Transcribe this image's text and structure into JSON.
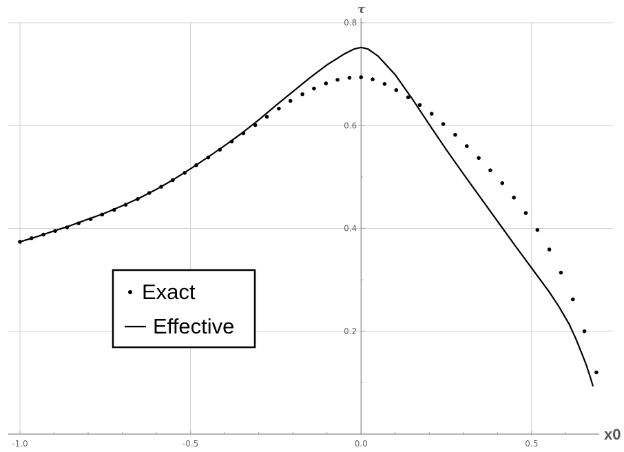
{
  "chart_data": {
    "type": "line",
    "title": "",
    "xlabel": "x0",
    "ylabel": "τ",
    "xlim": [
      -1.0,
      0.68
    ],
    "ylim": [
      0.0,
      0.8
    ],
    "grid": true,
    "legend_position": "bottom-left",
    "x_ticks": [
      {
        "value": -1.0,
        "label": "-1.0"
      },
      {
        "value": -0.5,
        "label": "-0.5"
      },
      {
        "value": 0.0,
        "label": "0.0"
      },
      {
        "value": 0.5,
        "label": "0.5"
      }
    ],
    "y_ticks": [
      {
        "value": 0.2,
        "label": "0.2"
      },
      {
        "value": 0.4,
        "label": "0.4"
      },
      {
        "value": 0.6,
        "label": "0.6"
      },
      {
        "value": 0.8,
        "label": "0.8"
      }
    ],
    "series": [
      {
        "name": "Exact",
        "style": "dots",
        "color": "#000000",
        "points": [
          [
            -1.0,
            0.374
          ],
          [
            -0.966,
            0.381
          ],
          [
            -0.931,
            0.388
          ],
          [
            -0.897,
            0.395
          ],
          [
            -0.862,
            0.402
          ],
          [
            -0.828,
            0.41
          ],
          [
            -0.793,
            0.418
          ],
          [
            -0.759,
            0.427
          ],
          [
            -0.724,
            0.436
          ],
          [
            -0.69,
            0.446
          ],
          [
            -0.655,
            0.457
          ],
          [
            -0.621,
            0.469
          ],
          [
            -0.586,
            0.481
          ],
          [
            -0.552,
            0.494
          ],
          [
            -0.517,
            0.508
          ],
          [
            -0.483,
            0.523
          ],
          [
            -0.448,
            0.538
          ],
          [
            -0.414,
            0.553
          ],
          [
            -0.379,
            0.569
          ],
          [
            -0.345,
            0.585
          ],
          [
            -0.31,
            0.601
          ],
          [
            -0.276,
            0.617
          ],
          [
            -0.241,
            0.633
          ],
          [
            -0.207,
            0.648
          ],
          [
            -0.172,
            0.661
          ],
          [
            -0.138,
            0.672
          ],
          [
            -0.103,
            0.682
          ],
          [
            -0.069,
            0.689
          ],
          [
            -0.034,
            0.693
          ],
          [
            0.0,
            0.694
          ],
          [
            0.034,
            0.69
          ],
          [
            0.069,
            0.681
          ],
          [
            0.103,
            0.669
          ],
          [
            0.138,
            0.655
          ],
          [
            0.172,
            0.64
          ],
          [
            0.207,
            0.623
          ],
          [
            0.241,
            0.603
          ],
          [
            0.276,
            0.582
          ],
          [
            0.31,
            0.56
          ],
          [
            0.345,
            0.537
          ],
          [
            0.379,
            0.513
          ],
          [
            0.414,
            0.488
          ],
          [
            0.448,
            0.46
          ],
          [
            0.483,
            0.43
          ],
          [
            0.517,
            0.397
          ],
          [
            0.552,
            0.359
          ],
          [
            0.586,
            0.314
          ],
          [
            0.621,
            0.262
          ],
          [
            0.655,
            0.2
          ],
          [
            0.69,
            0.12
          ]
        ]
      },
      {
        "name": "Effective",
        "style": "line",
        "color": "#000000",
        "points": [
          [
            -1.0,
            0.374
          ],
          [
            -0.95,
            0.384
          ],
          [
            -0.9,
            0.395
          ],
          [
            -0.85,
            0.406
          ],
          [
            -0.8,
            0.418
          ],
          [
            -0.75,
            0.43
          ],
          [
            -0.7,
            0.444
          ],
          [
            -0.65,
            0.459
          ],
          [
            -0.6,
            0.476
          ],
          [
            -0.55,
            0.495
          ],
          [
            -0.5,
            0.516
          ],
          [
            -0.45,
            0.538
          ],
          [
            -0.4,
            0.561
          ],
          [
            -0.35,
            0.585
          ],
          [
            -0.3,
            0.611
          ],
          [
            -0.25,
            0.639
          ],
          [
            -0.2,
            0.666
          ],
          [
            -0.15,
            0.693
          ],
          [
            -0.1,
            0.718
          ],
          [
            -0.05,
            0.739
          ],
          [
            -0.02,
            0.749
          ],
          [
            0.0,
            0.752
          ],
          [
            0.02,
            0.749
          ],
          [
            0.05,
            0.735
          ],
          [
            0.1,
            0.699
          ],
          [
            0.15,
            0.652
          ],
          [
            0.2,
            0.602
          ],
          [
            0.25,
            0.553
          ],
          [
            0.3,
            0.506
          ],
          [
            0.35,
            0.46
          ],
          [
            0.4,
            0.414
          ],
          [
            0.45,
            0.368
          ],
          [
            0.5,
            0.323
          ],
          [
            0.55,
            0.278
          ],
          [
            0.58,
            0.248
          ],
          [
            0.61,
            0.214
          ],
          [
            0.63,
            0.185
          ],
          [
            0.65,
            0.152
          ],
          [
            0.66,
            0.135
          ],
          [
            0.67,
            0.115
          ],
          [
            0.68,
            0.093
          ]
        ]
      }
    ]
  }
}
